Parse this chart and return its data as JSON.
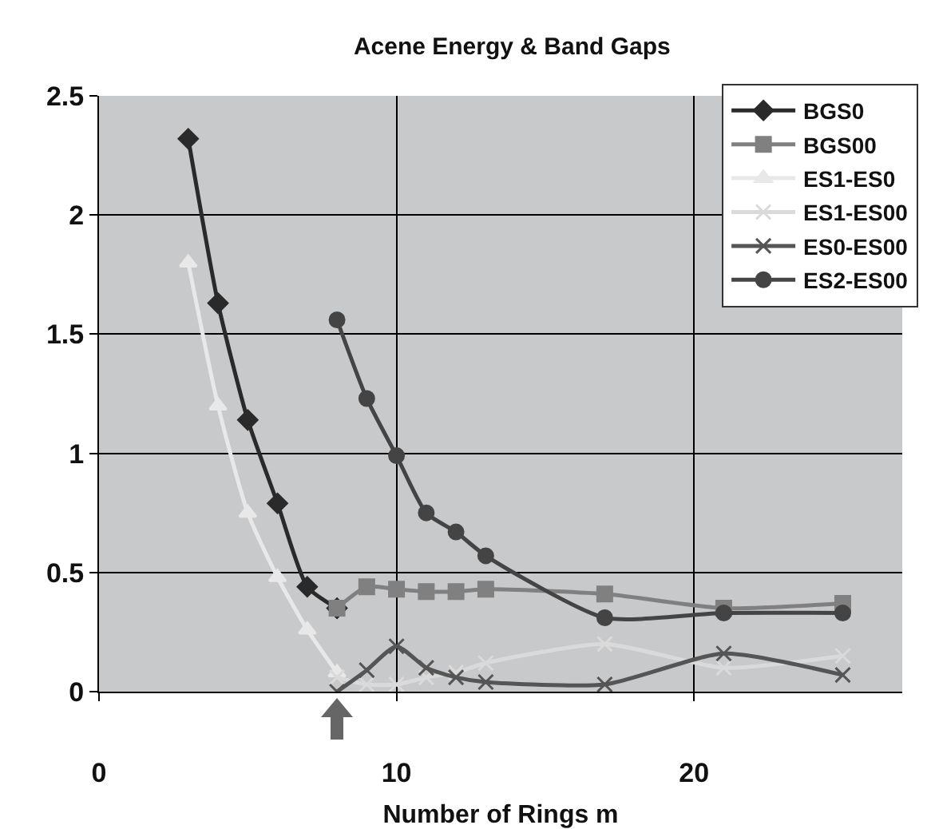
{
  "chart_data": {
    "type": "line",
    "title": "Acene Energy & Band Gaps",
    "xlabel": "Number of Rings m",
    "xlim": [
      0,
      27
    ],
    "xticks": [
      0,
      10,
      20
    ],
    "ylim": [
      0,
      2.5
    ],
    "yticks": [
      0,
      0.5,
      1,
      1.5,
      2,
      2.5
    ],
    "grid": true,
    "legend": "top right",
    "series": [
      {
        "name": "BGS0",
        "color": "#2a2a2a",
        "marker": "diamond",
        "x": [
          3,
          4,
          5,
          6,
          7,
          8
        ],
        "values": [
          2.32,
          1.63,
          1.14,
          0.79,
          0.44,
          0.35
        ]
      },
      {
        "name": "BGS00",
        "color": "#808080",
        "marker": "square",
        "x": [
          8,
          9,
          10,
          11,
          12,
          13,
          17,
          21,
          25
        ],
        "values": [
          0.35,
          0.44,
          0.43,
          0.42,
          0.42,
          0.43,
          0.41,
          0.35,
          0.37
        ]
      },
      {
        "name": "ES1-ES0",
        "color": "#e8e8e8",
        "marker": "triangle",
        "x": [
          3,
          4,
          5,
          6,
          7,
          8
        ],
        "values": [
          1.8,
          1.2,
          0.75,
          0.48,
          0.26,
          0.08
        ]
      },
      {
        "name": "ES1-ES00",
        "color": "#dadada",
        "marker": "cross",
        "x": [
          8,
          9,
          10,
          11,
          12,
          13,
          17,
          21,
          25
        ],
        "values": [
          0.06,
          0.03,
          0.03,
          0.06,
          0.08,
          0.12,
          0.2,
          0.1,
          0.15
        ]
      },
      {
        "name": "ES0-ES00",
        "color": "#555555",
        "marker": "cross",
        "x": [
          8,
          9,
          10,
          11,
          12,
          13,
          17,
          21,
          25
        ],
        "values": [
          0,
          0.09,
          0.19,
          0.1,
          0.06,
          0.04,
          0.03,
          0.16,
          0.07
        ]
      },
      {
        "name": "ES2-ES00",
        "color": "#444444",
        "marker": "circle",
        "x": [
          8,
          9,
          10,
          11,
          12,
          13,
          17,
          21,
          25
        ],
        "values": [
          1.56,
          1.23,
          0.99,
          0.75,
          0.67,
          0.57,
          0.31,
          0.33,
          0.33
        ]
      }
    ]
  }
}
